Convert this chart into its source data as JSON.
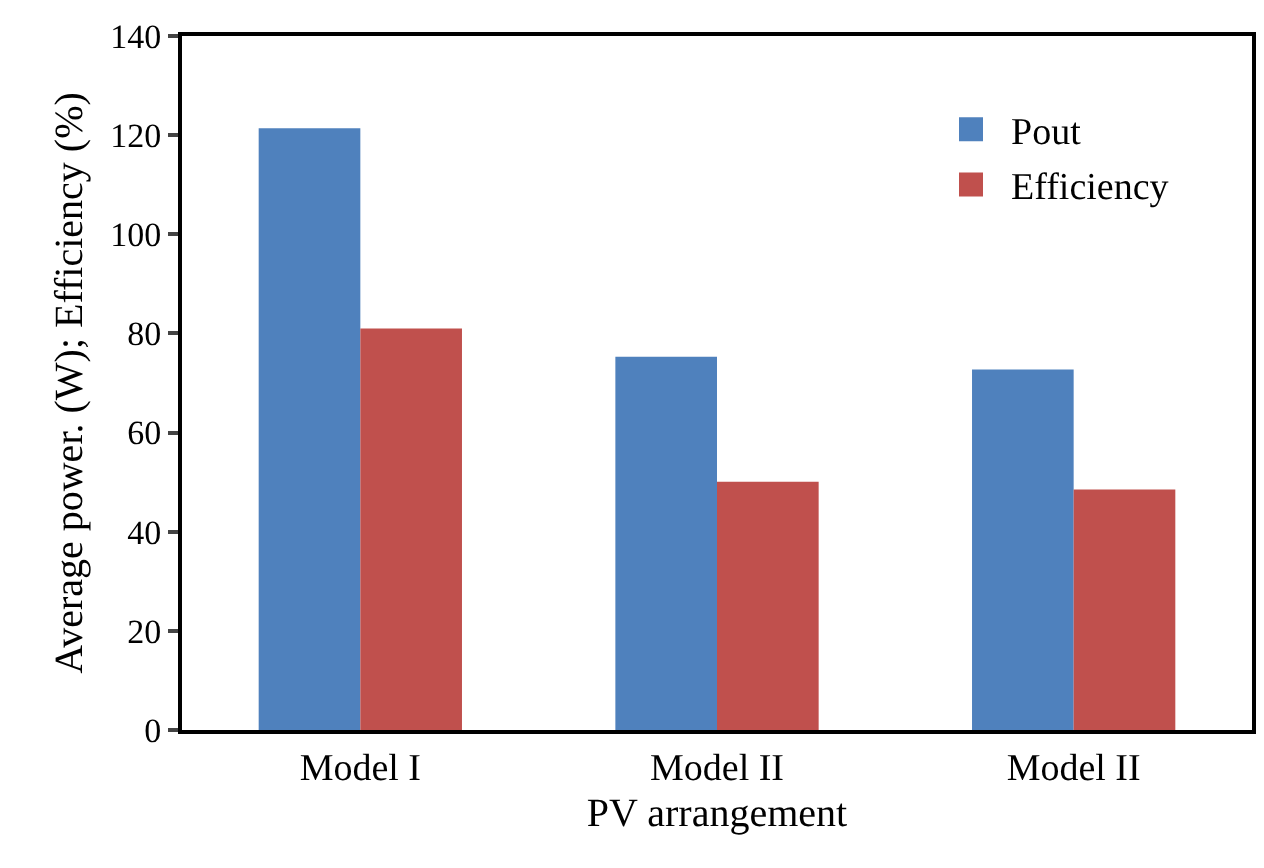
{
  "chart_data": {
    "type": "bar",
    "xlabel": "PV arrangement",
    "ylabel": "Average power. (W); Efficiency (%)",
    "categories": [
      "Model I",
      "Model II",
      "Model II"
    ],
    "series": [
      {
        "name": "Pout",
        "color": "#4f81bd",
        "values": [
          121.4,
          75.3,
          72.7
        ]
      },
      {
        "name": "Efficiency",
        "color": "#c0504d",
        "values": [
          81.0,
          50.1,
          48.5
        ]
      }
    ],
    "ylim": [
      0,
      140
    ],
    "yticks": [
      0,
      20,
      40,
      60,
      80,
      100,
      120,
      140
    ],
    "legend": "top right"
  }
}
